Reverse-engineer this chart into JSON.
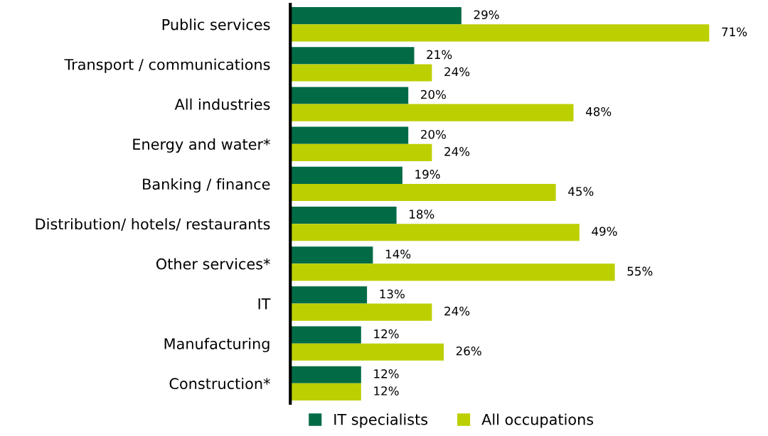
{
  "chart_data": {
    "type": "bar",
    "orientation": "horizontal",
    "categories": [
      "Public services",
      "Transport / communications",
      "All industries",
      "Energy and water*",
      "Banking / finance",
      "Distribution/ hotels/ restaurants",
      "Other services*",
      "IT",
      "Manufacturing",
      "Construction*"
    ],
    "series": [
      {
        "name": "IT specialists",
        "color": "#006b45",
        "values": [
          29,
          21,
          20,
          20,
          19,
          18,
          14,
          13,
          12,
          12
        ],
        "value_labels": [
          "29%",
          "21%",
          "20%",
          "20%",
          "19%",
          "18%",
          "14%",
          "13%",
          "12%",
          "12%"
        ]
      },
      {
        "name": "All occupations",
        "color": "#bccf00",
        "values": [
          71,
          24,
          48,
          24,
          45,
          49,
          55,
          24,
          26,
          12
        ],
        "value_labels": [
          "71%",
          "24%",
          "48%",
          "24%",
          "45%",
          "49%",
          "55%",
          "24%",
          "26%",
          "12%"
        ]
      }
    ],
    "legend": "bottom",
    "tick_labels": "y",
    "grid": false
  }
}
